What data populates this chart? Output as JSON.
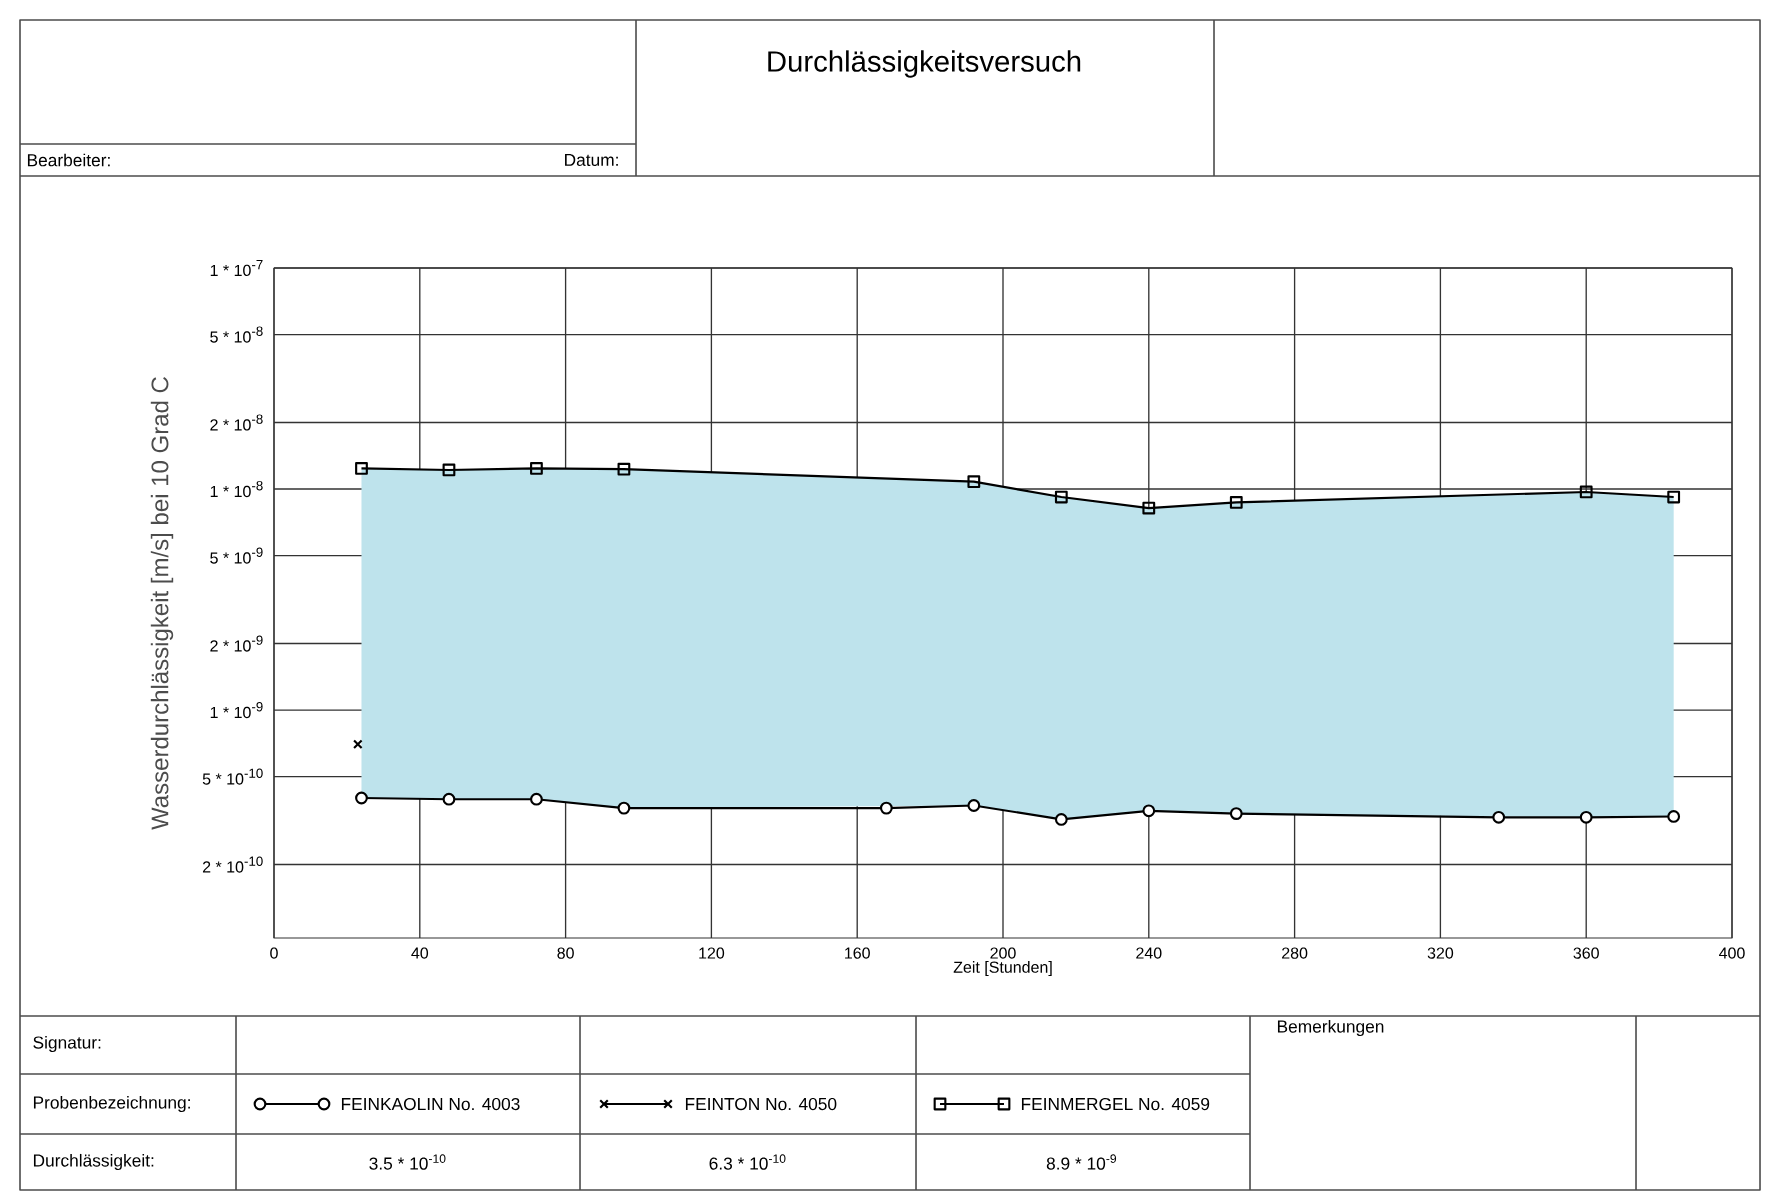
{
  "chart_data": {
    "type": "line",
    "title": "Durchlässigkeitsversuch",
    "xlabel": "Zeit [Stunden]",
    "ylabel": "Wasserdurchlässigkeit [m/s] bei 10 Grad C",
    "log": "y",
    "grid": true,
    "legend": "bottom",
    "line_style": "solid",
    "xlim": [
      0,
      400
    ],
    "xticks": [
      0,
      40,
      80,
      120,
      160,
      200,
      240,
      280,
      320,
      360,
      400
    ],
    "ylim": [
      9.3e-11,
      1e-07
    ],
    "yticks": [
      {
        "value": 1e-07,
        "label": "1 * 10$^{-7}$"
      },
      {
        "value": 5e-08,
        "label": "5 * 10$^{-8}$"
      },
      {
        "value": 2e-08,
        "label": "2 * 10$^{-8}$"
      },
      {
        "value": 1e-08,
        "label": "1 * 10$^{-8}$"
      },
      {
        "value": 5e-09,
        "label": "5 * 10$^{-9}$"
      },
      {
        "value": 2e-09,
        "label": "2 * 10$^{-9}$"
      },
      {
        "value": 1e-09,
        "label": "1 * 10$^{-9}$"
      },
      {
        "value": 5e-10,
        "label": "5 * 10$^{-10}$"
      },
      {
        "value": 2e-10,
        "label": "2 * 10$^{-10}$"
      }
    ],
    "series": [
      {
        "name": "FEINKAOLIN No. 4003",
        "color": "#000000",
        "marker": "circle",
        "x": [
          24,
          48,
          72,
          96,
          168,
          192,
          216,
          240,
          264,
          336,
          360,
          384
        ],
        "values": [
          4e-10,
          3.95e-10,
          3.95e-10,
          3.6e-10,
          3.6e-10,
          3.7e-10,
          3.2e-10,
          3.5e-10,
          3.4e-10,
          3.27e-10,
          3.27e-10,
          3.3e-10
        ]
      },
      {
        "name": "FEINTON No. 4050",
        "color": "#000000",
        "marker": "cross",
        "x": [
          23
        ],
        "values": [
          7e-10
        ]
      },
      {
        "name": "FEINMERGEL No. 4059",
        "color": "#000000",
        "marker": "square",
        "x": [
          24,
          48,
          72,
          96,
          192,
          216,
          240,
          264,
          360,
          384
        ],
        "values": [
          1.24e-08,
          1.22e-08,
          1.24e-08,
          1.23e-08,
          1.08e-08,
          9.2e-09,
          8.2e-09,
          8.7e-09,
          9.7e-09,
          9.2e-09
        ],
        "lower": [
          4e-10,
          3.95e-10,
          3.95e-10,
          3.6e-10,
          3.7e-10,
          3.2e-10,
          3.5e-10,
          3.4e-10,
          3.27e-10,
          3.3e-10
        ],
        "upper": [
          1.24e-08,
          1.22e-08,
          1.24e-08,
          1.23e-08,
          1.08e-08,
          9.2e-09,
          8.2e-09,
          8.7e-09,
          9.7e-09,
          9.2e-09
        ]
      }
    ],
    "annotations": [
      "Bearbeiter:",
      "Datum:",
      "Signatur:",
      "Probenbezeichnung:",
      "Durchlässigkeit:",
      "Bemerkungen",
      "3.5 * 10$^{-10}$",
      "6.3 * 10$^{-10}$",
      "8.9 * 10$^{-9}$"
    ]
  }
}
